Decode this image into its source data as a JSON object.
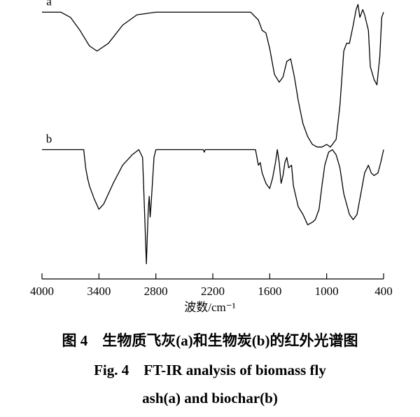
{
  "chart_data": {
    "type": "line",
    "xlabel": "波数/cm⁻¹",
    "xlim": [
      4000,
      400
    ],
    "xticks": [
      4000,
      3400,
      2800,
      2200,
      1600,
      1000,
      400
    ],
    "ylim": [
      0,
      105
    ],
    "captions": [
      "图 4　生物质飞灰(a)和生物炭(b)的红外光谱图",
      "Fig. 4　FT-IR analysis of biomass fly",
      "ash(a)  and biochar(b)"
    ],
    "series": [
      {
        "name": "a",
        "color": "#000000",
        "x": [
          4000,
          3800,
          3700,
          3600,
          3500,
          3420,
          3300,
          3150,
          3000,
          2800,
          2200,
          1800,
          1720,
          1680,
          1640,
          1600,
          1550,
          1500,
          1460,
          1420,
          1380,
          1340,
          1300,
          1250,
          1200,
          1150,
          1100,
          1050,
          1000,
          960,
          900,
          860,
          820,
          790,
          760,
          720,
          690,
          670,
          650,
          620,
          600,
          560,
          540,
          500,
          470,
          440,
          420,
          400
        ],
        "values": [
          98,
          98,
          96,
          91,
          85,
          83,
          86,
          93,
          97,
          98,
          98,
          98,
          95,
          91,
          90,
          84,
          74,
          71,
          73,
          79,
          80,
          73,
          64,
          55,
          50,
          47,
          46,
          46,
          47,
          46,
          49,
          62,
          83,
          86,
          86,
          93,
          99,
          101,
          96,
          99,
          97,
          91,
          77,
          72,
          70,
          81,
          96,
          98
        ]
      },
      {
        "name": "b",
        "color": "#000000",
        "x": [
          4000,
          3600,
          3560,
          3540,
          3520,
          3500,
          3450,
          3400,
          3350,
          3250,
          3150,
          3050,
          2980,
          2940,
          2920,
          2900,
          2880,
          2870,
          2860,
          2850,
          2820,
          2800,
          2300,
          2290,
          2280,
          1750,
          1720,
          1700,
          1680,
          1640,
          1600,
          1570,
          1540,
          1520,
          1500,
          1480,
          1460,
          1440,
          1420,
          1400,
          1370,
          1350,
          1300,
          1250,
          1200,
          1150,
          1120,
          1080,
          1050,
          1020,
          980,
          940,
          900,
          860,
          820,
          760,
          720,
          680,
          640,
          600,
          560,
          530,
          500,
          460,
          430,
          400
        ],
        "values": [
          45,
          45,
          45,
          38,
          34,
          31,
          26,
          22,
          24,
          32,
          39,
          43,
          45,
          42,
          22,
          1,
          22,
          27,
          19,
          24,
          42,
          45,
          45,
          44,
          45,
          45,
          39,
          40,
          36,
          32,
          30,
          34,
          40,
          45,
          40,
          32,
          35,
          40,
          42,
          38,
          39,
          31,
          23,
          20,
          16,
          17,
          18,
          22,
          31,
          39,
          44,
          45,
          43,
          38,
          28,
          20,
          18,
          20,
          28,
          36,
          39,
          36,
          35,
          36,
          40,
          45
        ]
      }
    ]
  }
}
